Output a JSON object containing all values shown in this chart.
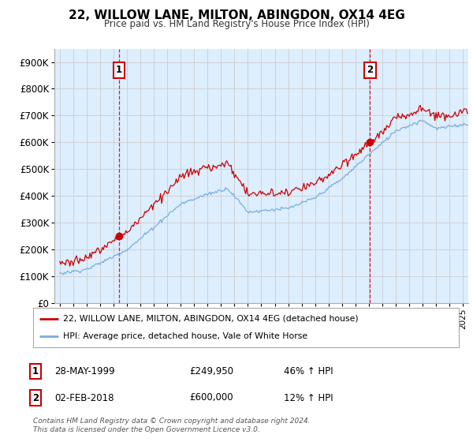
{
  "title": "22, WILLOW LANE, MILTON, ABINGDON, OX14 4EG",
  "subtitle": "Price paid vs. HM Land Registry's House Price Index (HPI)",
  "legend_line1": "22, WILLOW LANE, MILTON, ABINGDON, OX14 4EG (detached house)",
  "legend_line2": "HPI: Average price, detached house, Vale of White Horse",
  "annotation1_date": "28-MAY-1999",
  "annotation1_price": "£249,950",
  "annotation1_hpi": "46% ↑ HPI",
  "annotation2_date": "02-FEB-2018",
  "annotation2_price": "£600,000",
  "annotation2_hpi": "12% ↑ HPI",
  "footer": "Contains HM Land Registry data © Crown copyright and database right 2024.\nThis data is licensed under the Open Government Licence v3.0.",
  "line_color_red": "#cc0000",
  "line_color_blue": "#7aaddd",
  "chart_bg_color": "#ddeeff",
  "background_color": "#ffffff",
  "grid_color": "#cccccc",
  "sale1_year": 1999.4,
  "sale1_price": 249950,
  "sale2_year": 2018.1,
  "sale2_price": 600000,
  "ylim": [
    0,
    950000
  ],
  "yticks": [
    0,
    100000,
    200000,
    300000,
    400000,
    500000,
    600000,
    700000,
    800000,
    900000
  ],
  "xlim_start": 1994.6,
  "xlim_end": 2025.4
}
